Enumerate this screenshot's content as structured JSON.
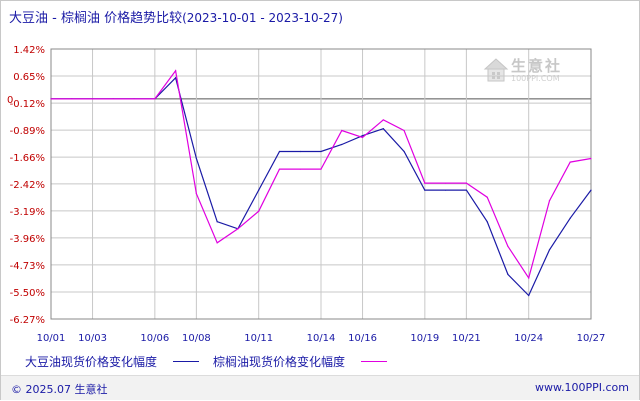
{
  "title": {
    "main": "大豆油 - 棕榈油 价格趋势比较",
    "range": "(2023-10-01 - 2023-10-27)"
  },
  "watermark": {
    "name": "生意社",
    "url": "100PPI.COM"
  },
  "footer": {
    "copyright": "© 2025.07 生意社",
    "url": "www.100PPI.com"
  },
  "colors": {
    "series1": "#1a1aa6",
    "series2": "#e000e0",
    "grid": "#c8c8c8",
    "ytick": "#c00000"
  },
  "chart_data": {
    "type": "line",
    "title": "大豆油 - 棕榈油 价格趋势比较",
    "xlabel": "",
    "ylabel": "",
    "y_ticks": [
      "1.42%",
      "0.65%",
      "0",
      "-0.12%",
      "-0.89%",
      "-1.66%",
      "-2.42%",
      "-3.19%",
      "-3.96%",
      "-4.73%",
      "-5.50%",
      "-6.27%"
    ],
    "y_tick_values": [
      1.42,
      0.65,
      0,
      -0.12,
      -0.89,
      -1.66,
      -2.42,
      -3.19,
      -3.96,
      -4.73,
      -5.5,
      -6.27
    ],
    "x_ticks": [
      "10/01",
      "10/03",
      "10/06",
      "10/08",
      "10/11",
      "10/14",
      "10/16",
      "10/19",
      "10/21",
      "10/24",
      "10/27"
    ],
    "ylim": [
      -6.27,
      1.42
    ],
    "grid": true,
    "legend_position": "bottom",
    "x": [
      "10/01",
      "10/02",
      "10/03",
      "10/04",
      "10/05",
      "10/06",
      "10/07",
      "10/08",
      "10/09",
      "10/10",
      "10/11",
      "10/12",
      "10/13",
      "10/14",
      "10/15",
      "10/16",
      "10/17",
      "10/18",
      "10/19",
      "10/20",
      "10/21",
      "10/22",
      "10/23",
      "10/24",
      "10/25",
      "10/26",
      "10/27"
    ],
    "series": [
      {
        "name": "大豆油现货价格变化幅度",
        "values": [
          0,
          0,
          0,
          0,
          0,
          0,
          0.6,
          -1.7,
          -3.5,
          -3.7,
          -2.6,
          -1.5,
          -1.5,
          -1.5,
          -1.3,
          -1.05,
          -0.85,
          -1.5,
          -2.6,
          -2.6,
          -2.6,
          -3.5,
          -5.0,
          -5.6,
          -4.3,
          -3.4,
          -2.6
        ]
      },
      {
        "name": "棕榈油现货价格变化幅度",
        "values": [
          0,
          0,
          0,
          0,
          0,
          0,
          0.8,
          -2.7,
          -4.1,
          -3.7,
          -3.2,
          -2.0,
          -2.0,
          -2.0,
          -0.9,
          -1.1,
          -0.6,
          -0.9,
          -2.4,
          -2.4,
          -2.4,
          -2.8,
          -4.2,
          -5.1,
          -2.9,
          -1.8,
          -1.7
        ]
      }
    ]
  }
}
